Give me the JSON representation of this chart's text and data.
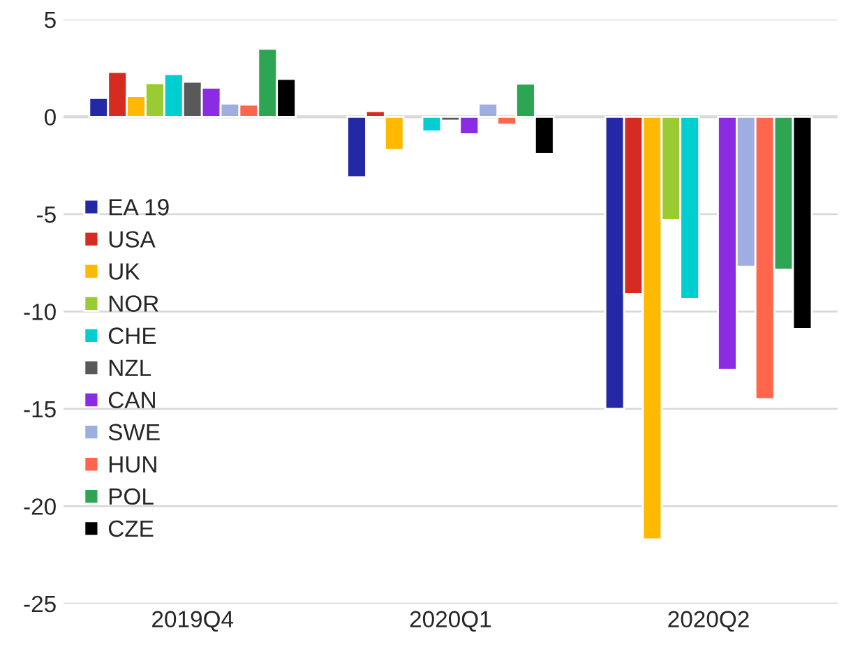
{
  "chart_data": {
    "type": "bar",
    "categories": [
      "2019Q4",
      "2020Q1",
      "2020Q2"
    ],
    "series": [
      {
        "name": "EA 19",
        "color": "#2228a6",
        "values": [
          0.97,
          -3.1,
          -15
        ]
      },
      {
        "name": "USA",
        "color": "#d62b20",
        "values": [
          2.3,
          0.3,
          -9.1
        ]
      },
      {
        "name": "UK",
        "color": "#ffb900",
        "values": [
          1.07,
          -1.7,
          -21.7
        ]
      },
      {
        "name": "NOR",
        "color": "#9bcb32",
        "values": [
          1.73,
          null,
          -5.3
        ]
      },
      {
        "name": "CHE",
        "color": "#00ced0",
        "values": [
          2.2,
          -0.75,
          -9.35
        ]
      },
      {
        "name": "NZL",
        "color": "#595959",
        "values": [
          1.8,
          -0.2,
          null
        ]
      },
      {
        "name": "CAN",
        "color": "#8b2be2",
        "values": [
          1.5,
          -0.9,
          -13
        ]
      },
      {
        "name": "SWE",
        "color": "#9eaee0",
        "values": [
          0.68,
          0.68,
          -7.7
        ]
      },
      {
        "name": "HUN",
        "color": "#ff664c",
        "values": [
          0.63,
          -0.4,
          -14.5
        ]
      },
      {
        "name": "POL",
        "color": "#2ea553",
        "values": [
          3.5,
          1.7,
          -7.85
        ]
      },
      {
        "name": "CZE",
        "color": "#000000",
        "values": [
          1.95,
          -1.9,
          -10.9
        ]
      }
    ],
    "ylim": [
      -25,
      5
    ],
    "yticks": [
      -25,
      -20,
      -15,
      -10,
      -5,
      0,
      5
    ],
    "grid": "y",
    "legend": "left"
  }
}
